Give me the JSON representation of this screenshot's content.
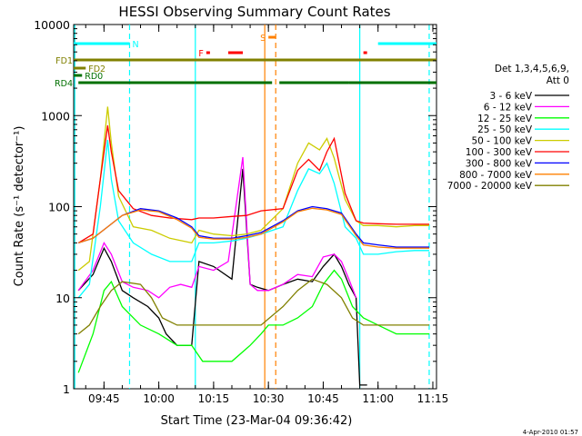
{
  "chart_data": {
    "type": "line",
    "title": "HESSI Observing Summary Count Rates",
    "xlabel": "Start Time (23-Mar-04 09:36:42)",
    "ylabel": "Count Rate (s⁻¹ detector⁻¹)",
    "yscale": "log",
    "ylim": [
      1,
      10000
    ],
    "xlim": [
      "09:36:42",
      "11:16:00"
    ],
    "x_ticks": [
      "09:45",
      "10:00",
      "10:15",
      "10:30",
      "10:45",
      "11:00",
      "11:15"
    ],
    "y_ticks": [
      "1",
      "10",
      "100",
      "1000",
      "10000"
    ],
    "legend": {
      "position": "right",
      "title_lines": [
        "Det 1,3,4,5,6,9,",
        "Att 0"
      ]
    },
    "series": [
      {
        "name": "3 - 6 keV",
        "color": "#000000",
        "points": [
          [
            "09:38",
            12
          ],
          [
            "09:42",
            18
          ],
          [
            "09:45",
            35
          ],
          [
            "09:47",
            25
          ],
          [
            "09:50",
            12
          ],
          [
            "09:53",
            10
          ],
          [
            "09:57",
            8
          ],
          [
            "10:00",
            6
          ],
          [
            "10:02",
            4
          ],
          [
            "10:05",
            3
          ],
          [
            "10:07",
            3
          ],
          [
            "10:09",
            3
          ],
          [
            "10:11",
            25
          ],
          [
            "10:15",
            22
          ],
          [
            "10:20",
            16
          ],
          [
            "10:23",
            260
          ],
          [
            "10:25",
            14
          ],
          [
            "10:27",
            13
          ],
          [
            "10:30",
            12
          ],
          [
            "10:34",
            14
          ],
          [
            "10:38",
            16
          ],
          [
            "10:42",
            15
          ],
          [
            "10:45",
            22
          ],
          [
            "10:48",
            30
          ],
          [
            "10:50",
            22
          ],
          [
            "10:52",
            14
          ],
          [
            "10:54",
            10
          ],
          [
            "10:55",
            1.1
          ],
          [
            "10:57",
            1.1
          ]
        ]
      },
      {
        "name": "6 - 12 keV",
        "color": "#ff00ff",
        "points": [
          [
            "09:38",
            12
          ],
          [
            "09:42",
            20
          ],
          [
            "09:45",
            40
          ],
          [
            "09:47",
            30
          ],
          [
            "09:50",
            15
          ],
          [
            "09:53",
            13
          ],
          [
            "09:57",
            12
          ],
          [
            "10:00",
            10
          ],
          [
            "10:03",
            13
          ],
          [
            "10:06",
            14
          ],
          [
            "10:09",
            13
          ],
          [
            "10:11",
            22
          ],
          [
            "10:15",
            20
          ],
          [
            "10:19",
            25
          ],
          [
            "10:23",
            350
          ],
          [
            "10:25",
            14
          ],
          [
            "10:27",
            12
          ],
          [
            "10:30",
            12
          ],
          [
            "10:34",
            14
          ],
          [
            "10:38",
            18
          ],
          [
            "10:42",
            17
          ],
          [
            "10:45",
            28
          ],
          [
            "10:48",
            30
          ],
          [
            "10:50",
            25
          ],
          [
            "10:52",
            16
          ],
          [
            "10:54",
            10
          ]
        ]
      },
      {
        "name": "12 - 25 keV",
        "color": "#00ff00",
        "points": [
          [
            "09:38",
            1.5
          ],
          [
            "09:42",
            4
          ],
          [
            "09:45",
            12
          ],
          [
            "09:47",
            15
          ],
          [
            "09:50",
            8
          ],
          [
            "09:55",
            5
          ],
          [
            "10:00",
            4
          ],
          [
            "10:05",
            3
          ],
          [
            "10:09",
            3
          ],
          [
            "10:12",
            2
          ],
          [
            "10:15",
            2
          ],
          [
            "10:20",
            2
          ],
          [
            "10:25",
            3
          ],
          [
            "10:28",
            4
          ],
          [
            "10:30",
            5
          ],
          [
            "10:34",
            5
          ],
          [
            "10:38",
            6
          ],
          [
            "10:42",
            8
          ],
          [
            "10:45",
            14
          ],
          [
            "10:48",
            20
          ],
          [
            "10:50",
            16
          ],
          [
            "10:53",
            8
          ],
          [
            "10:56",
            6
          ],
          [
            "11:00",
            5
          ],
          [
            "11:05",
            4
          ],
          [
            "11:10",
            4
          ],
          [
            "11:14",
            4
          ]
        ]
      },
      {
        "name": "25 - 50 keV",
        "color": "#00ffff",
        "points": [
          [
            "09:38",
            10
          ],
          [
            "09:41",
            14
          ],
          [
            "09:44",
            100
          ],
          [
            "09:46",
            540
          ],
          [
            "09:47",
            200
          ],
          [
            "09:49",
            70
          ],
          [
            "09:53",
            40
          ],
          [
            "09:58",
            30
          ],
          [
            "10:03",
            25
          ],
          [
            "10:09",
            25
          ],
          [
            "10:11",
            40
          ],
          [
            "10:15",
            40
          ],
          [
            "10:20",
            42
          ],
          [
            "10:24",
            45
          ],
          [
            "10:28",
            50
          ],
          [
            "10:34",
            60
          ],
          [
            "10:38",
            150
          ],
          [
            "10:41",
            260
          ],
          [
            "10:44",
            230
          ],
          [
            "10:46",
            300
          ],
          [
            "10:48",
            180
          ],
          [
            "10:51",
            60
          ],
          [
            "10:54",
            45
          ],
          [
            "10:56",
            30
          ],
          [
            "11:00",
            30
          ],
          [
            "11:05",
            32
          ],
          [
            "11:10",
            33
          ],
          [
            "11:14",
            33
          ]
        ]
      },
      {
        "name": "50 - 100 keV",
        "color": "#cccc00",
        "points": [
          [
            "09:38",
            20
          ],
          [
            "09:41",
            25
          ],
          [
            "09:44",
            200
          ],
          [
            "09:46",
            1250
          ],
          [
            "09:47",
            500
          ],
          [
            "09:49",
            130
          ],
          [
            "09:53",
            60
          ],
          [
            "09:58",
            55
          ],
          [
            "10:03",
            45
          ],
          [
            "10:09",
            40
          ],
          [
            "10:11",
            55
          ],
          [
            "10:15",
            50
          ],
          [
            "10:20",
            48
          ],
          [
            "10:24",
            50
          ],
          [
            "10:28",
            55
          ],
          [
            "10:34",
            95
          ],
          [
            "10:38",
            300
          ],
          [
            "10:41",
            500
          ],
          [
            "10:44",
            420
          ],
          [
            "10:46",
            560
          ],
          [
            "10:48",
            340
          ],
          [
            "10:51",
            120
          ],
          [
            "10:54",
            70
          ],
          [
            "10:56",
            62
          ],
          [
            "11:00",
            62
          ],
          [
            "11:05",
            60
          ],
          [
            "11:10",
            62
          ],
          [
            "11:14",
            62
          ]
        ]
      },
      {
        "name": "100 - 300 keV",
        "color": "#ff0000",
        "points": [
          [
            "09:38",
            40
          ],
          [
            "09:42",
            50
          ],
          [
            "09:44",
            200
          ],
          [
            "09:46",
            780
          ],
          [
            "09:47",
            400
          ],
          [
            "09:49",
            150
          ],
          [
            "09:53",
            95
          ],
          [
            "09:58",
            80
          ],
          [
            "10:03",
            75
          ],
          [
            "10:09",
            72
          ],
          [
            "10:11",
            75
          ],
          [
            "10:15",
            75
          ],
          [
            "10:20",
            78
          ],
          [
            "10:24",
            80
          ],
          [
            "10:28",
            90
          ],
          [
            "10:34",
            95
          ],
          [
            "10:38",
            250
          ],
          [
            "10:41",
            330
          ],
          [
            "10:44",
            250
          ],
          [
            "10:46",
            400
          ],
          [
            "10:48",
            560
          ],
          [
            "10:51",
            140
          ],
          [
            "10:54",
            70
          ],
          [
            "10:56",
            66
          ],
          [
            "11:00",
            65
          ],
          [
            "11:05",
            64
          ],
          [
            "11:10",
            64
          ],
          [
            "11:14",
            64
          ]
        ]
      },
      {
        "name": "300 - 800 keV",
        "color": "#0000ff",
        "points": [
          [
            "09:38",
            40
          ],
          [
            "09:42",
            45
          ],
          [
            "09:46",
            60
          ],
          [
            "09:50",
            80
          ],
          [
            "09:55",
            95
          ],
          [
            "10:00",
            90
          ],
          [
            "10:05",
            75
          ],
          [
            "10:09",
            60
          ],
          [
            "10:11",
            48
          ],
          [
            "10:15",
            45
          ],
          [
            "10:20",
            45
          ],
          [
            "10:24",
            48
          ],
          [
            "10:28",
            52
          ],
          [
            "10:34",
            70
          ],
          [
            "10:38",
            90
          ],
          [
            "10:42",
            100
          ],
          [
            "10:46",
            95
          ],
          [
            "10:50",
            85
          ],
          [
            "10:54",
            50
          ],
          [
            "10:56",
            40
          ],
          [
            "11:00",
            38
          ],
          [
            "11:05",
            36
          ],
          [
            "11:10",
            36
          ],
          [
            "11:14",
            36
          ]
        ]
      },
      {
        "name": "800 - 7000 keV",
        "color": "#ff8000",
        "points": [
          [
            "09:38",
            40
          ],
          [
            "09:42",
            45
          ],
          [
            "09:46",
            60
          ],
          [
            "09:50",
            80
          ],
          [
            "09:55",
            92
          ],
          [
            "10:00",
            88
          ],
          [
            "10:05",
            72
          ],
          [
            "10:09",
            58
          ],
          [
            "10:11",
            46
          ],
          [
            "10:15",
            44
          ],
          [
            "10:20",
            44
          ],
          [
            "10:24",
            46
          ],
          [
            "10:28",
            50
          ],
          [
            "10:34",
            68
          ],
          [
            "10:38",
            88
          ],
          [
            "10:42",
            96
          ],
          [
            "10:46",
            92
          ],
          [
            "10:50",
            82
          ],
          [
            "10:54",
            48
          ],
          [
            "10:56",
            38
          ],
          [
            "11:00",
            36
          ],
          [
            "11:05",
            35
          ],
          [
            "11:10",
            35
          ],
          [
            "11:14",
            35
          ]
        ]
      },
      {
        "name": "7000 - 20000 keV",
        "color": "#808000",
        "points": [
          [
            "09:38",
            4
          ],
          [
            "09:41",
            5
          ],
          [
            "09:44",
            8
          ],
          [
            "09:47",
            12
          ],
          [
            "09:50",
            15
          ],
          [
            "09:55",
            14
          ],
          [
            "09:58",
            10
          ],
          [
            "10:01",
            6
          ],
          [
            "10:05",
            5
          ],
          [
            "10:09",
            5
          ],
          [
            "10:11",
            5
          ],
          [
            "10:15",
            5
          ],
          [
            "10:20",
            5
          ],
          [
            "10:24",
            5
          ],
          [
            "10:28",
            5
          ],
          [
            "10:34",
            8
          ],
          [
            "10:38",
            12
          ],
          [
            "10:42",
            16
          ],
          [
            "10:46",
            14
          ],
          [
            "10:50",
            10
          ],
          [
            "10:53",
            6
          ],
          [
            "10:56",
            5
          ],
          [
            "11:00",
            5
          ],
          [
            "11:05",
            5
          ],
          [
            "11:10",
            5
          ],
          [
            "11:14",
            5
          ]
        ]
      }
    ],
    "flag_labels": [
      {
        "label": "N",
        "color": "#00ffff"
      },
      {
        "label": "F",
        "color": "#ff0000"
      },
      {
        "label": "S",
        "color": "#ff8000"
      },
      {
        "label": "FD1",
        "color": "#808000"
      },
      {
        "label": "FD2",
        "color": "#808000"
      },
      {
        "label": "RD0",
        "color": "#007000"
      },
      {
        "label": "RD4",
        "color": "#007000"
      }
    ],
    "flag_intervals": {
      "N": [
        [
          "09:36:42",
          "09:52"
        ],
        [
          "11:00",
          "11:16"
        ]
      ],
      "F": [
        [
          "10:13",
          "10:14"
        ],
        [
          "10:19",
          "10:23"
        ],
        [
          "10:56",
          "10:57"
        ]
      ],
      "S": [
        [
          "10:30",
          "10:32"
        ]
      ],
      "FD1": [
        [
          "09:36:42",
          "11:16"
        ]
      ],
      "FD2": [
        [
          "09:36:42",
          "09:40"
        ]
      ],
      "RD0": [
        [
          "09:36:42",
          "09:39"
        ]
      ],
      "RD4": [
        [
          "09:38",
          "10:10"
        ],
        [
          "10:10",
          "10:31"
        ],
        [
          "10:33",
          "10:52"
        ],
        [
          "10:52",
          "11:16"
        ]
      ]
    },
    "vertical_lines": [
      {
        "time": "09:37",
        "color": "#00ffff",
        "style": "solid"
      },
      {
        "time": "09:52",
        "color": "#00ffff",
        "style": "dashed"
      },
      {
        "time": "10:10",
        "color": "#00ffff",
        "style": "solid"
      },
      {
        "time": "10:29",
        "color": "#ff8000",
        "style": "solid"
      },
      {
        "time": "10:32",
        "color": "#ff8000",
        "style": "dashed"
      },
      {
        "time": "10:55",
        "color": "#00ffff",
        "style": "solid"
      },
      {
        "time": "11:14",
        "color": "#00ffff",
        "style": "dashed"
      }
    ]
  },
  "footer_date": "4-Apr-2010 01:57"
}
